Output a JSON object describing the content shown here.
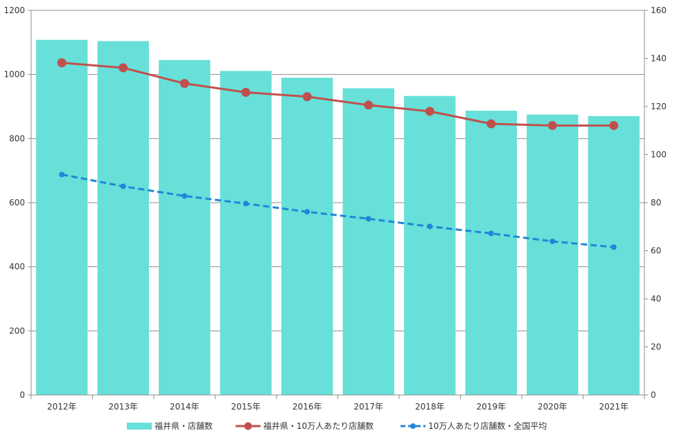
{
  "chart_data": {
    "type": "bar",
    "categories": [
      "2012年",
      "2013年",
      "2014年",
      "2015年",
      "2016年",
      "2017年",
      "2018年",
      "2019年",
      "2020年",
      "2021年"
    ],
    "series": [
      {
        "name": "福井県・店舗数",
        "type": "bar",
        "axis": "left",
        "color": "#66E0D8",
        "values": [
          1108,
          1104,
          1045,
          1011,
          990,
          957,
          933,
          887,
          875,
          870
        ]
      },
      {
        "name": "福井県・10万人あたり店舗数",
        "type": "line",
        "axis": "right",
        "color": "#C0504D",
        "style": "solid",
        "marker": "circle",
        "values": [
          138.2,
          136.1,
          129.6,
          125.9,
          124.1,
          120.6,
          118.0,
          112.8,
          112.1,
          112.1
        ]
      },
      {
        "name": "10万人あたり店舗数・全国平均",
        "type": "line",
        "axis": "right",
        "color": "#1F86D8",
        "style": "dashed",
        "marker": "circle",
        "values": [
          91.7,
          86.8,
          82.8,
          79.6,
          76.2,
          73.3,
          70.1,
          67.2,
          63.9,
          61.5
        ]
      }
    ],
    "ylim_left": [
      0,
      1200
    ],
    "yticks_left": [
      "0",
      "200",
      "400",
      "600",
      "800",
      "1000",
      "1200"
    ],
    "ylim_right": [
      0,
      160
    ],
    "yticks_right": [
      "0",
      "20",
      "40",
      "60",
      "80",
      "100",
      "120",
      "140",
      "160"
    ],
    "grid": true,
    "legend_position": "bottom",
    "title": "",
    "xlabel": "",
    "ylabel": ""
  }
}
